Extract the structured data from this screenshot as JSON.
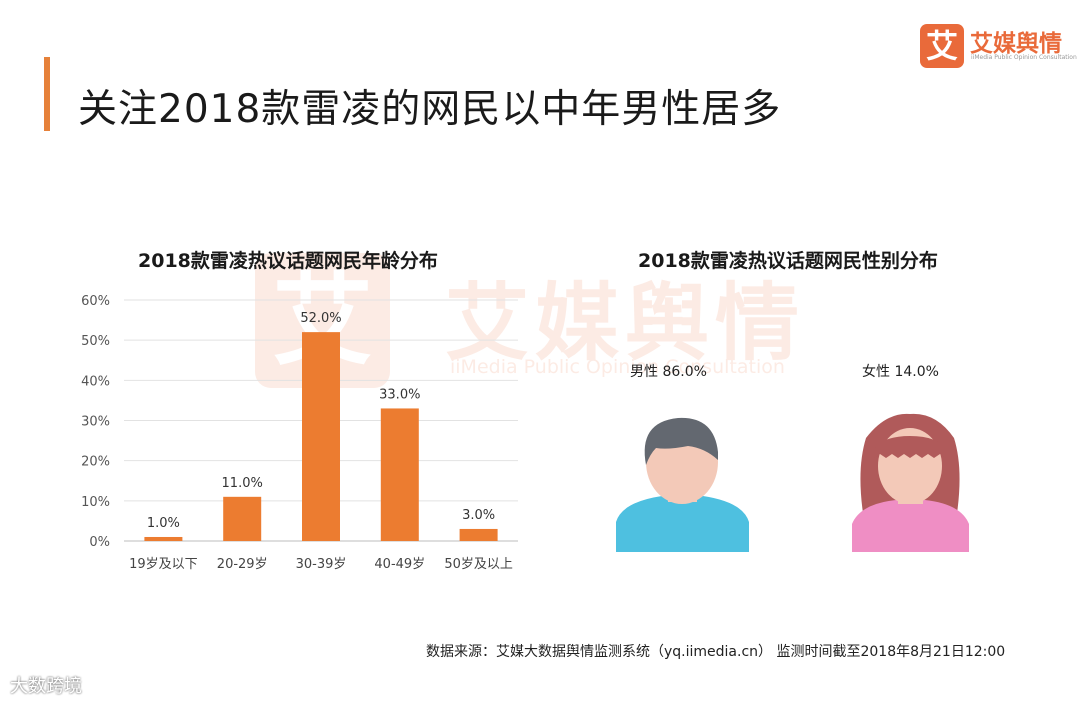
{
  "page": {
    "title": "关注2018款雷凌的网民以中年男性居多",
    "source": "数据来源：艾媒大数据舆情监测系统（yq.iimedia.cn） 监测时间截至2018年8月21日12:00",
    "wechat_watermark": "大数跨境"
  },
  "logo": {
    "badge_char": "艾",
    "name": "艾媒舆情",
    "subtitle": "iiMedia Public Opinion Consultation"
  },
  "watermark": {
    "badge_char": "艾",
    "name": "艾媒舆情",
    "subtitle": "iiMedia Public Opinion Consultation"
  },
  "colors": {
    "accent": "#e6813a",
    "bar": "#ec7c30",
    "male_shirt": "#4ec0e0",
    "male_hair": "#636870",
    "female_shirt": "#ef8ec4",
    "female_hair": "#b05a5a",
    "skin": "#f3c9b8"
  },
  "chart_data": [
    {
      "type": "bar",
      "title": "2018款雷凌热议话题网民年龄分布",
      "categories": [
        "19岁及以下",
        "20-29岁",
        "30-39岁",
        "40-49岁",
        "50岁及以上"
      ],
      "values": [
        1.0,
        11.0,
        52.0,
        33.0,
        3.0
      ],
      "value_labels": [
        "1.0%",
        "11.0%",
        "52.0%",
        "33.0%",
        "3.0%"
      ],
      "yticks": [
        "0%",
        "10%",
        "20%",
        "30%",
        "40%",
        "50%",
        "60%"
      ],
      "ylim": [
        0,
        60
      ],
      "grid": true,
      "xlabel": "",
      "ylabel": ""
    },
    {
      "type": "pictogram",
      "title": "2018款雷凌热议话题网民性别分布",
      "categories": [
        "男性",
        "女性"
      ],
      "values": [
        86.0,
        14.0
      ],
      "labels": [
        "男性 86.0%",
        "女性 14.0%"
      ]
    }
  ]
}
